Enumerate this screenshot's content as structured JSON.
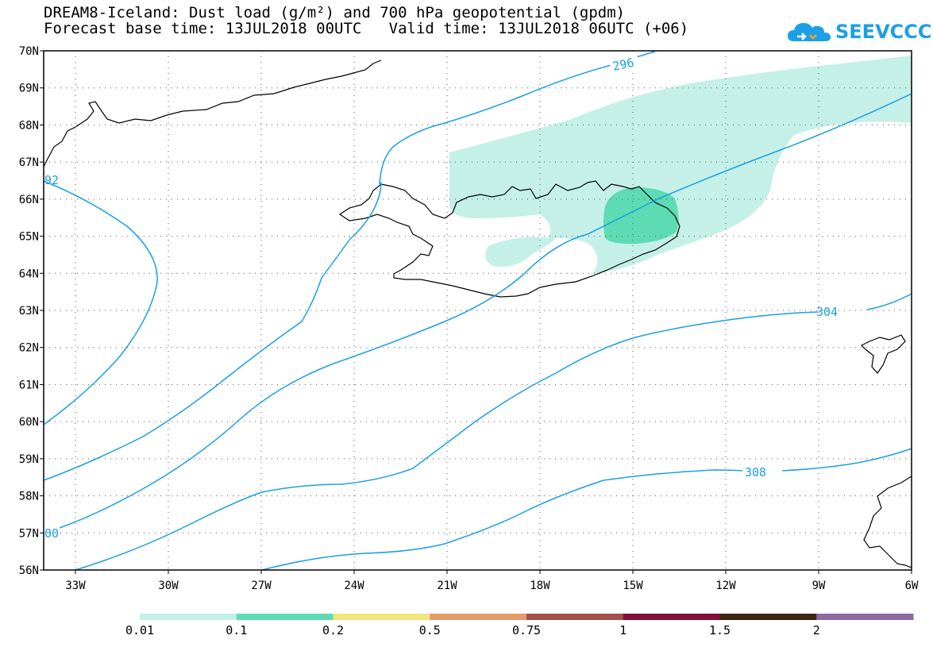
{
  "header": {
    "title_line1": "DREAM8-Iceland: Dust load (g/m²) and 700 hPa geopotential (gpdm)",
    "title_line2": "Forecast base time: 13JUL2018 00UTC   Valid time: 13JUL2018 06UTC (+06)"
  },
  "logo": {
    "text": "SEEVCCC",
    "icon": "cloud-icon",
    "color": "#1aa0e6"
  },
  "map": {
    "lat_labels": [
      "70N",
      "69N",
      "68N",
      "67N",
      "66N",
      "65N",
      "64N",
      "63N",
      "62N",
      "61N",
      "60N",
      "59N",
      "58N",
      "57N",
      "56N"
    ],
    "lon_labels": [
      "33W",
      "30W",
      "27W",
      "24W",
      "21W",
      "18W",
      "15W",
      "12W",
      "9W",
      "6W"
    ],
    "contour_labels": [
      "296",
      "304",
      "308",
      "92",
      "00"
    ],
    "contour_color": "#1a9fe6",
    "dust_colors": {
      "low": "#c4f0e8",
      "mid": "#5ddcb4"
    }
  },
  "colorbar": {
    "ticks": [
      "0.01",
      "0.1",
      "0.2",
      "0.5",
      "0.75",
      "1",
      "1.5",
      "2"
    ],
    "colors": [
      "#c4f0e8",
      "#5ddcb4",
      "#f5e47d",
      "#e59a6a",
      "#a4504b",
      "#820f34",
      "#3c2514",
      "#8c6aa4"
    ]
  }
}
